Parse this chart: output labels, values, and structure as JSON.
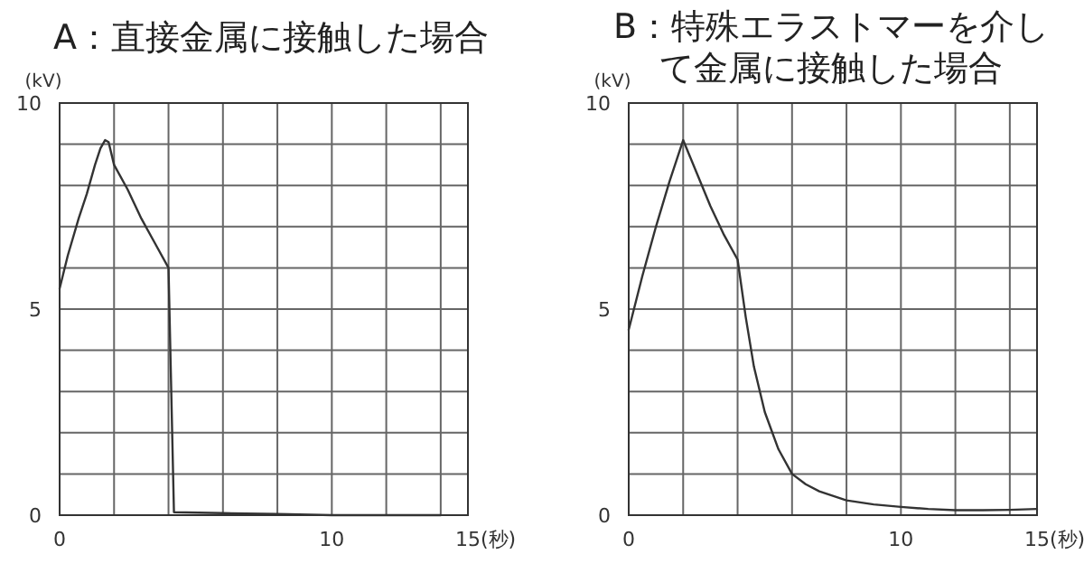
{
  "chart_data": [
    {
      "type": "line",
      "title": "A：直接金属に接触した場合",
      "ylabel": "(kV)",
      "xlim": [
        0,
        15
      ],
      "ylim": [
        0,
        10
      ],
      "xticks": [
        0,
        {
          "value": 2,
          "label": null
        },
        {
          "value": 4,
          "label": null
        },
        {
          "value": 6,
          "label": null
        },
        {
          "value": 8,
          "label": null
        },
        10,
        {
          "value": 12,
          "label": null
        },
        {
          "value": 14,
          "label": null
        },
        15
      ],
      "xlabel": "(秒)",
      "yticks": [
        0,
        {
          "value": 1,
          "label": null
        },
        {
          "value": 2,
          "label": null
        },
        {
          "value": 3,
          "label": null
        },
        {
          "value": 4,
          "label": null
        },
        5,
        {
          "value": 6,
          "label": null
        },
        {
          "value": 7,
          "label": null
        },
        {
          "value": 8,
          "label": null
        },
        {
          "value": 9,
          "label": null
        },
        10
      ],
      "grid": true,
      "marker": "none",
      "line_style": "solid",
      "series": [
        {
          "color": "#333333",
          "x": [
            0,
            0.3,
            0.7,
            1.0,
            1.3,
            1.5,
            1.67,
            1.8,
            2.0,
            2.5,
            3.0,
            3.5,
            4.0,
            4.2,
            6,
            8,
            10,
            12,
            14
          ],
          "values": [
            5.5,
            6.3,
            7.2,
            7.8,
            8.5,
            8.9,
            9.1,
            9.05,
            8.5,
            7.9,
            7.2,
            6.6,
            6.0,
            0.07,
            0.05,
            0.03,
            0.0,
            0.0,
            0.0
          ]
        }
      ]
    },
    {
      "type": "line",
      "title": "B：特殊エラストマーを介して金属に接触した場合",
      "ylabel": "(kV)",
      "xlim": [
        0,
        15
      ],
      "ylim": [
        0,
        10
      ],
      "xticks": [
        0,
        {
          "value": 2,
          "label": null
        },
        {
          "value": 4,
          "label": null
        },
        {
          "value": 6,
          "label": null
        },
        {
          "value": 8,
          "label": null
        },
        10,
        {
          "value": 12,
          "label": null
        },
        {
          "value": 14,
          "label": null
        },
        15
      ],
      "xlabel": "(秒)",
      "yticks": [
        0,
        {
          "value": 1,
          "label": null
        },
        {
          "value": 2,
          "label": null
        },
        {
          "value": 3,
          "label": null
        },
        {
          "value": 4,
          "label": null
        },
        5,
        {
          "value": 6,
          "label": null
        },
        {
          "value": 7,
          "label": null
        },
        {
          "value": 8,
          "label": null
        },
        {
          "value": 9,
          "label": null
        },
        10
      ],
      "grid": true,
      "marker": "none",
      "line_style": "solid",
      "series": [
        {
          "color": "#333333",
          "x": [
            0,
            0.5,
            1.0,
            1.5,
            2.0,
            2.5,
            3.0,
            3.5,
            4.0,
            4.3,
            4.6,
            5.0,
            5.5,
            6.0,
            6.5,
            7,
            8,
            9,
            10,
            11,
            12,
            13,
            14,
            15
          ],
          "values": [
            4.5,
            5.8,
            7.0,
            8.1,
            9.1,
            8.3,
            7.5,
            6.8,
            6.2,
            4.8,
            3.6,
            2.5,
            1.6,
            1.0,
            0.75,
            0.58,
            0.36,
            0.26,
            0.2,
            0.15,
            0.12,
            0.12,
            0.13,
            0.15
          ]
        }
      ]
    }
  ]
}
